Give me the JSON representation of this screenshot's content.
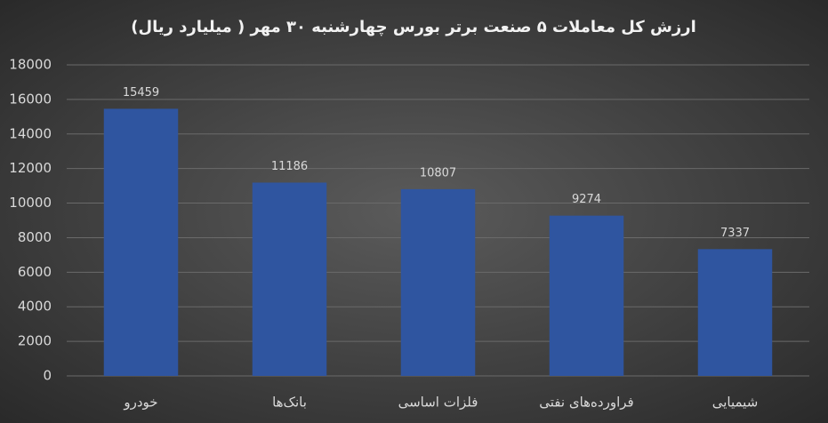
{
  "chart_data": {
    "type": "bar",
    "title": "ارزش کل معاملات ۵ صنعت برتر بورس چهارشنبه ۳۰ مهر ( میلیارد ریال)",
    "categories": [
      "خودرو",
      "بانک‌ها",
      "فلزات اساسی",
      "فراورده‌های نفتی",
      "شیمیایی"
    ],
    "values": [
      15459,
      11186,
      10807,
      9274,
      7337
    ],
    "color": "#2f55a0",
    "ylim": [
      0,
      18000
    ],
    "yticks": [
      0,
      2000,
      4000,
      6000,
      8000,
      10000,
      12000,
      14000,
      16000,
      18000
    ],
    "grid": true
  }
}
